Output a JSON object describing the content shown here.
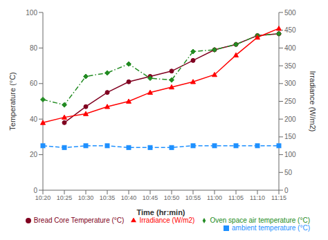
{
  "chart_data": {
    "type": "line",
    "categories": [
      "10:20",
      "10:25",
      "10:30",
      "10:35",
      "10:40",
      "10:45",
      "10:50",
      "10:55",
      "11:00",
      "11:05",
      "11:10",
      "11:15"
    ],
    "xlabel": "Time (hr:min)",
    "ylabel": "Temperature (°C)",
    "y2label": "Irradiance (W/m2)",
    "ylim": [
      0,
      100
    ],
    "yticks": [
      0,
      20,
      40,
      60,
      80,
      100
    ],
    "y2lim": [
      0,
      500
    ],
    "y2ticks": [
      0,
      50,
      100,
      150,
      200,
      250,
      300,
      350,
      400,
      450,
      500
    ],
    "grid": false,
    "legend": "lower right",
    "series": [
      {
        "name": "Bread Core Temperature (°C)",
        "color": "#800020",
        "marker": "circle",
        "line_style": "solid",
        "values": [
          null,
          38,
          47,
          55,
          61,
          64,
          67,
          73,
          79,
          82,
          87,
          88
        ]
      },
      {
        "name": "Oven space air temperature (°C)",
        "color": "#228B22",
        "marker": "diamond",
        "line_style": "dashdot",
        "values": [
          51,
          48,
          64,
          66,
          71,
          63,
          62,
          78,
          79,
          82,
          87,
          88
        ]
      },
      {
        "name": "ambient temperature (°C)",
        "color": "#1E90FF",
        "marker": "square",
        "line_style": "dashed",
        "values": [
          25,
          24,
          25,
          25,
          24,
          24,
          24,
          25,
          25,
          25,
          25,
          25
        ]
      },
      {
        "name": "Irradiance (W/m2)",
        "color": "#FF0000",
        "marker": "triangle",
        "line_style": "solid",
        "axis": "y2",
        "values": [
          190,
          205,
          215,
          235,
          250,
          275,
          290,
          305,
          325,
          380,
          430,
          455
        ]
      }
    ]
  }
}
